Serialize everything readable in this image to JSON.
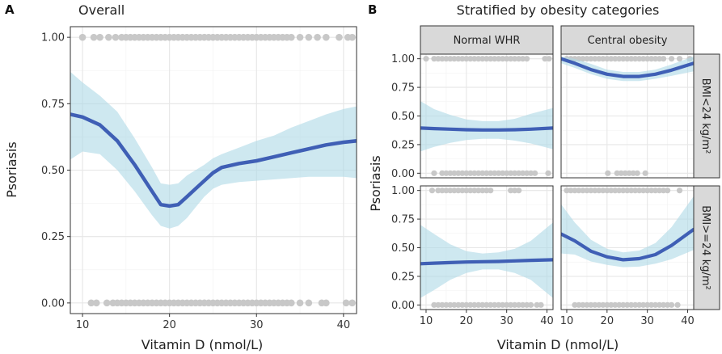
{
  "panel_a": {
    "label": "A",
    "title": "Overall"
  },
  "panel_b": {
    "label": "B",
    "title": "Stratified by obesity categories"
  },
  "colors": {
    "line": "#3f5fb5",
    "ribbon": "#add8e6",
    "points": "#c8c8c8",
    "grid": "#e6e6e6",
    "border": "#333333",
    "strip_bg": "#d9d9d9"
  },
  "chart_data": [
    {
      "id": "overall",
      "type": "line",
      "title": "Overall",
      "xlabel": "Vitamin D (nmol/L)",
      "ylabel": "Psoriasis",
      "xlim": [
        8.6,
        41.5
      ],
      "ylim": [
        -0.04,
        1.04
      ],
      "xticks": [
        10,
        20,
        30,
        40
      ],
      "yticks": [
        0.0,
        0.25,
        0.5,
        0.75,
        1.0
      ],
      "ytick_labels": [
        "0.00",
        "0.25",
        "0.50",
        "0.75",
        "1.00"
      ],
      "series": [
        {
          "name": "Smoothed fit",
          "x": [
            8.6,
            10,
            12,
            14,
            16,
            18,
            19,
            20,
            21,
            22,
            23,
            24,
            25,
            26,
            28,
            30,
            32,
            34,
            36,
            38,
            40,
            41.5
          ],
          "y": [
            0.71,
            0.7,
            0.67,
            0.61,
            0.52,
            0.42,
            0.37,
            0.365,
            0.37,
            0.4,
            0.43,
            0.46,
            0.49,
            0.51,
            0.525,
            0.535,
            0.55,
            0.565,
            0.58,
            0.595,
            0.605,
            0.61
          ],
          "lower": [
            0.54,
            0.57,
            0.56,
            0.5,
            0.42,
            0.33,
            0.29,
            0.28,
            0.29,
            0.32,
            0.36,
            0.4,
            0.43,
            0.445,
            0.455,
            0.46,
            0.465,
            0.47,
            0.475,
            0.475,
            0.475,
            0.47
          ],
          "upper": [
            0.87,
            0.83,
            0.78,
            0.72,
            0.62,
            0.51,
            0.45,
            0.445,
            0.45,
            0.48,
            0.5,
            0.52,
            0.545,
            0.56,
            0.585,
            0.61,
            0.63,
            0.66,
            0.685,
            0.71,
            0.73,
            0.74
          ]
        }
      ],
      "points": [
        {
          "y": 1,
          "x": [
            10,
            11.3,
            12,
            13,
            13.8,
            14.5,
            15,
            15.5,
            16,
            16.5,
            17,
            17.5,
            18,
            18.5,
            19,
            19.5,
            20,
            20.5,
            21,
            21.5,
            22,
            22.5,
            23,
            23.5,
            24,
            24.5,
            25,
            25.5,
            26,
            26.5,
            27,
            27.5,
            28,
            28.5,
            29,
            29.5,
            30,
            30.5,
            31,
            31.5,
            32,
            32.5,
            33,
            33.5,
            34,
            35,
            36,
            37,
            38,
            39.5,
            40.5,
            41
          ]
        },
        {
          "y": 0,
          "x": [
            11,
            11.6,
            12.8,
            13.5,
            14,
            14.5,
            15,
            15.5,
            16,
            16.5,
            17,
            17.5,
            18,
            18.5,
            19,
            19.5,
            20,
            20.5,
            21,
            21.5,
            22,
            22.5,
            23,
            23.5,
            24,
            24.5,
            25,
            25.5,
            26,
            26.5,
            27,
            27.5,
            28,
            28.5,
            29,
            29.5,
            30,
            30.5,
            31,
            31.5,
            32,
            32.5,
            33,
            33.5,
            34,
            35,
            36,
            37.5,
            38,
            40.3,
            41
          ]
        }
      ]
    },
    {
      "id": "stratified",
      "type": "line",
      "title": "Stratified by obesity categories",
      "xlabel": "Vitamin D (nmol/L)",
      "ylabel": "Psoriasis",
      "xlim": [
        8.6,
        41.5
      ],
      "ylim": [
        -0.04,
        1.04
      ],
      "xticks": [
        10,
        20,
        30,
        40
      ],
      "yticks": [
        0.0,
        0.25,
        0.5,
        0.75,
        1.0
      ],
      "ytick_labels": [
        "0.00",
        "0.25",
        "0.50",
        "0.75",
        "1.00"
      ],
      "col_labels": [
        "Normal WHR",
        "Central obesity"
      ],
      "row_labels": [
        "BMI<24 kg/m²",
        "BMI>=24 kg/m²"
      ],
      "panels": [
        {
          "row": 0,
          "col": 0,
          "x": [
            8.6,
            12,
            16,
            20,
            24,
            28,
            32,
            36,
            41.5
          ],
          "y": [
            0.395,
            0.39,
            0.385,
            0.38,
            0.378,
            0.378,
            0.38,
            0.385,
            0.395
          ],
          "lower": [
            0.19,
            0.23,
            0.265,
            0.29,
            0.3,
            0.3,
            0.285,
            0.26,
            0.21
          ],
          "upper": [
            0.63,
            0.56,
            0.51,
            0.47,
            0.455,
            0.455,
            0.475,
            0.52,
            0.57
          ],
          "points": [
            {
              "y": 1,
              "x": [
                10,
                12,
                13,
                14,
                15,
                16,
                17,
                18,
                19,
                20,
                21,
                22,
                23,
                24,
                25,
                26,
                27,
                28,
                29,
                30,
                31,
                32,
                33,
                34,
                35,
                39.5,
                40.5
              ]
            },
            {
              "y": 0,
              "x": [
                12,
                14,
                15,
                16,
                17,
                18,
                19,
                20,
                21,
                22,
                23,
                24,
                25,
                26,
                27,
                28,
                29,
                30,
                31,
                32,
                33,
                34,
                35,
                36,
                37,
                40.3
              ]
            }
          ]
        },
        {
          "row": 0,
          "col": 1,
          "x": [
            8.6,
            12,
            16,
            20,
            24,
            28,
            32,
            36,
            41.5
          ],
          "y": [
            1.0,
            0.96,
            0.905,
            0.865,
            0.845,
            0.845,
            0.865,
            0.9,
            0.96
          ],
          "lower": [
            0.96,
            0.92,
            0.865,
            0.825,
            0.805,
            0.805,
            0.825,
            0.85,
            0.89
          ],
          "upper": [
            1.02,
            1.0,
            0.955,
            0.905,
            0.885,
            0.885,
            0.905,
            0.95,
            1.02
          ],
          "points": [
            {
              "y": 1,
              "x": [
                10,
                11,
                12,
                13,
                14,
                15,
                16,
                17,
                18,
                19,
                20,
                21,
                22,
                23,
                24,
                25,
                26,
                27,
                28,
                29,
                30,
                31,
                32,
                33,
                34,
                36,
                38,
                40.5
              ]
            },
            {
              "y": 0,
              "x": [
                20.2,
                22.5,
                23.5,
                24.5,
                25.5,
                26.5,
                27.5,
                29.5
              ]
            }
          ]
        },
        {
          "row": 1,
          "col": 0,
          "x": [
            8.6,
            12,
            16,
            20,
            24,
            28,
            32,
            36,
            41.5
          ],
          "y": [
            0.36,
            0.365,
            0.37,
            0.375,
            0.378,
            0.38,
            0.385,
            0.39,
            0.395
          ],
          "lower": [
            0.06,
            0.13,
            0.22,
            0.28,
            0.31,
            0.31,
            0.28,
            0.22,
            0.06
          ],
          "upper": [
            0.7,
            0.62,
            0.53,
            0.47,
            0.45,
            0.46,
            0.49,
            0.56,
            0.72
          ],
          "points": [
            {
              "y": 1,
              "x": [
                11.5,
                13,
                14,
                15,
                16,
                17,
                18,
                19,
                20,
                21,
                22,
                23,
                24,
                25,
                26,
                31,
                32,
                33
              ]
            },
            {
              "y": 0,
              "x": [
                12,
                13,
                14,
                15,
                16,
                17,
                18,
                19,
                20,
                21,
                22,
                23,
                24,
                25,
                26,
                27,
                28,
                29,
                30,
                31,
                32,
                33,
                34,
                35,
                36,
                37.5,
                38.5
              ]
            }
          ]
        },
        {
          "row": 1,
          "col": 1,
          "x": [
            8.6,
            12,
            16,
            20,
            24,
            28,
            32,
            36,
            41.5
          ],
          "y": [
            0.62,
            0.56,
            0.47,
            0.42,
            0.395,
            0.405,
            0.44,
            0.52,
            0.66
          ],
          "lower": [
            0.45,
            0.44,
            0.38,
            0.35,
            0.33,
            0.335,
            0.36,
            0.4,
            0.48
          ],
          "upper": [
            0.88,
            0.72,
            0.57,
            0.49,
            0.46,
            0.475,
            0.54,
            0.68,
            0.95
          ],
          "points": [
            {
              "y": 1,
              "x": [
                10,
                11,
                12,
                13,
                14,
                15,
                16,
                17,
                18,
                19,
                20,
                21,
                22,
                23,
                24,
                25,
                26,
                27,
                28,
                29,
                30,
                31,
                32,
                33,
                34,
                35,
                38
              ]
            },
            {
              "y": 0,
              "x": [
                12,
                13,
                14,
                15,
                16,
                17,
                18,
                19,
                20,
                21,
                22,
                23,
                24,
                25,
                26,
                27,
                28,
                29,
                30,
                31,
                32,
                33,
                34,
                35,
                36,
                37.5
              ]
            }
          ]
        }
      ]
    }
  ]
}
